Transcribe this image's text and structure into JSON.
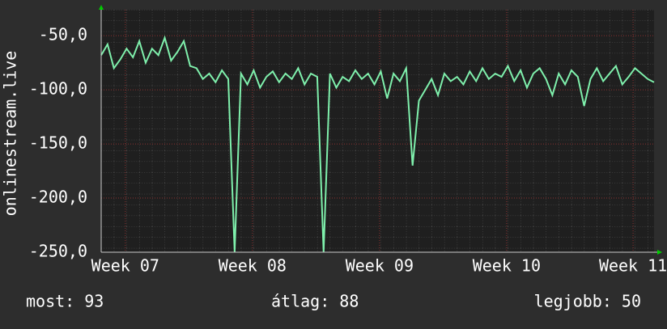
{
  "chart_data": {
    "type": "line",
    "y_label": "onlinestream.live",
    "series": [
      {
        "color": "#7ff0ac",
        "values": [
          -68,
          -58,
          -80,
          -72,
          -62,
          -70,
          -55,
          -75,
          -62,
          -68,
          -52,
          -73,
          -65,
          -55,
          -78,
          -80,
          -90,
          -85,
          -93,
          -82,
          -90,
          -250,
          -85,
          -95,
          -82,
          -98,
          -88,
          -83,
          -93,
          -85,
          -90,
          -80,
          -95,
          -85,
          -88,
          -250,
          -85,
          -98,
          -88,
          -92,
          -82,
          -90,
          -85,
          -95,
          -83,
          -108,
          -85,
          -92,
          -80,
          -170,
          -110,
          -100,
          -90,
          -105,
          -85,
          -92,
          -88,
          -95,
          -83,
          -92,
          -80,
          -90,
          -85,
          -88,
          -78,
          -92,
          -82,
          -98,
          -85,
          -80,
          -90,
          -105,
          -85,
          -95,
          -82,
          -88,
          -115,
          -90,
          -80,
          -92,
          -85,
          -78,
          -95,
          -88,
          -80,
          -85,
          -90,
          -93
        ]
      }
    ],
    "xlim": [
      0,
      87
    ],
    "xticks": [
      {
        "value": 3.8,
        "label": "Week 07"
      },
      {
        "value": 23.8,
        "label": "Week 08"
      },
      {
        "value": 43.8,
        "label": "Week 09"
      },
      {
        "value": 63.8,
        "label": "Week 10"
      },
      {
        "value": 83.7,
        "label": "Week 11"
      }
    ],
    "ylim": [
      -250,
      -26
    ],
    "yticks": [
      {
        "value": -250,
        "label": "-250,0"
      },
      {
        "value": -200,
        "label": "-200,0"
      },
      {
        "value": -150,
        "label": "-150,0"
      },
      {
        "value": -100,
        "label": "-100,0"
      },
      {
        "value": -50,
        "label": "-50,0"
      }
    ],
    "grid": true,
    "stats": [
      "most: 93",
      "átlag: 88",
      "legjobb: 50"
    ]
  }
}
